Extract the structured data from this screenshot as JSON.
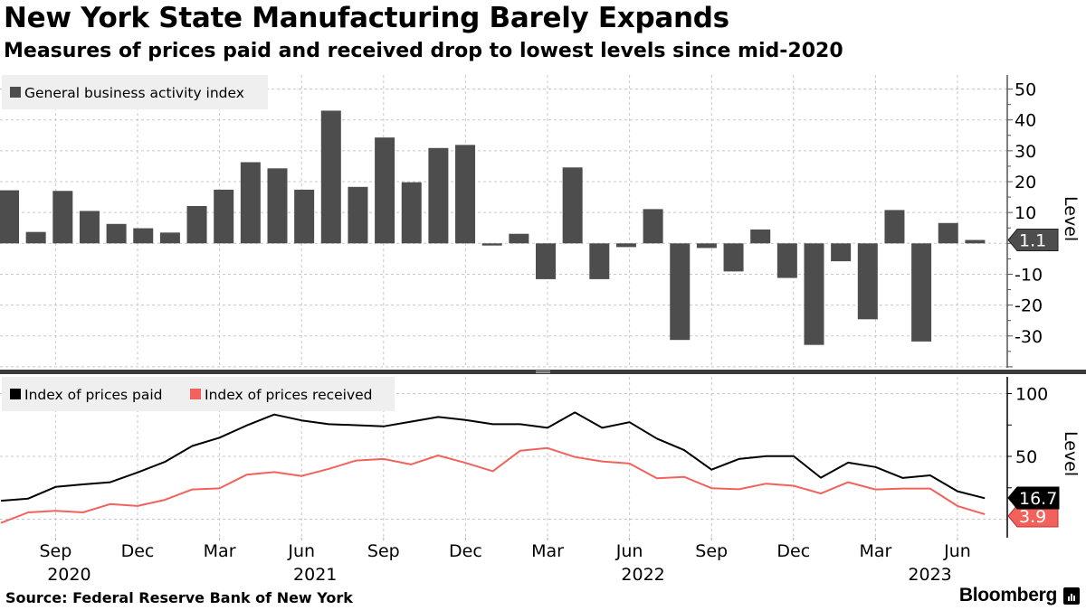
{
  "header": {
    "title": "New York State Manufacturing Barely Expands",
    "subtitle": "Measures of prices paid and received drop to lowest levels since mid-2020"
  },
  "footer": {
    "source": "Source: Federal Reserve Bank of New York",
    "brand": "Bloomberg",
    "brand_icon": "bloomberg-chart-icon"
  },
  "colors": {
    "bar": "#4d4d4d",
    "prices_paid": "#000000",
    "prices_received": "#f2625c",
    "grid": "#c8c8c8",
    "legend_bg": "#efefef"
  },
  "chart_data": [
    {
      "type": "bar",
      "title": "General business activity index",
      "ylabel": "Level",
      "ylim": [
        -40,
        55
      ],
      "yticks": [
        50,
        40,
        30,
        20,
        10,
        -10,
        -20,
        -30
      ],
      "grid": true,
      "legend_position": "top-left",
      "series": [
        {
          "name": "General business activity index",
          "x": [
            "2020-07",
            "2020-08",
            "2020-09",
            "2020-10",
            "2020-11",
            "2020-12",
            "2021-01",
            "2021-02",
            "2021-03",
            "2021-04",
            "2021-05",
            "2021-06",
            "2021-07",
            "2021-08",
            "2021-09",
            "2021-10",
            "2021-11",
            "2021-12",
            "2022-01",
            "2022-02",
            "2022-03",
            "2022-04",
            "2022-05",
            "2022-06",
            "2022-07",
            "2022-08",
            "2022-09",
            "2022-10",
            "2022-11",
            "2022-12",
            "2023-01",
            "2023-02",
            "2023-03",
            "2023-04",
            "2023-05",
            "2023-06",
            "2023-07"
          ],
          "values": [
            17.2,
            3.7,
            17.0,
            10.5,
            6.3,
            4.9,
            3.5,
            12.1,
            17.4,
            26.3,
            24.3,
            17.4,
            43.0,
            18.3,
            34.3,
            19.8,
            30.9,
            31.9,
            -0.7,
            3.1,
            -11.6,
            24.6,
            -11.6,
            -1.2,
            11.1,
            -31.3,
            -1.5,
            -9.1,
            4.5,
            -11.2,
            -32.9,
            -5.8,
            -24.6,
            10.8,
            -31.8,
            6.6,
            1.1
          ]
        }
      ],
      "last_value_label": "1.1"
    },
    {
      "type": "line",
      "ylabel": "Level",
      "ylim": [
        -5,
        110
      ],
      "yticks": [
        100,
        50
      ],
      "minor_yticks": [
        75,
        25
      ],
      "grid": true,
      "legend_position": "top-left",
      "x": [
        "2020-07",
        "2020-08",
        "2020-09",
        "2020-10",
        "2020-11",
        "2020-12",
        "2021-01",
        "2021-02",
        "2021-03",
        "2021-04",
        "2021-05",
        "2021-06",
        "2021-07",
        "2021-08",
        "2021-09",
        "2021-10",
        "2021-11",
        "2021-12",
        "2022-01",
        "2022-02",
        "2022-03",
        "2022-04",
        "2022-05",
        "2022-06",
        "2022-07",
        "2022-08",
        "2022-09",
        "2022-10",
        "2022-11",
        "2022-12",
        "2023-01",
        "2023-02",
        "2023-03",
        "2023-04",
        "2023-05",
        "2023-06",
        "2023-07"
      ],
      "series": [
        {
          "name": "Index of prices paid",
          "values": [
            14.7,
            16.4,
            25.7,
            27.7,
            29.4,
            37.2,
            45.6,
            58.3,
            64.9,
            74.7,
            83.3,
            78.6,
            75.6,
            74.8,
            73.9,
            77.6,
            81.4,
            79.0,
            75.6,
            75.6,
            72.7,
            85.0,
            72.7,
            77.2,
            64.2,
            55.0,
            39.4,
            47.9,
            50.2,
            50.2,
            33.0,
            45.0,
            41.5,
            32.8,
            34.9,
            22.2,
            16.7
          ],
          "last_value_label": "16.7"
        },
        {
          "name": "Index of prices received",
          "values": [
            -3.0,
            5.4,
            6.6,
            5.4,
            12.0,
            10.5,
            15.4,
            23.7,
            24.5,
            35.5,
            37.5,
            34.4,
            40.1,
            46.7,
            47.9,
            43.6,
            50.7,
            44.8,
            38.2,
            54.5,
            56.6,
            49.5,
            46.0,
            44.3,
            32.5,
            33.7,
            24.7,
            23.8,
            28.3,
            26.6,
            20.4,
            29.4,
            23.7,
            24.4,
            24.4,
            10.5,
            3.9
          ],
          "last_value_label": "3.9"
        }
      ]
    }
  ],
  "x_axis": {
    "month_labels": [
      {
        "label": "Sep",
        "date": "2020-09"
      },
      {
        "label": "Dec",
        "date": "2020-12"
      },
      {
        "label": "Mar",
        "date": "2021-03"
      },
      {
        "label": "Jun",
        "date": "2021-06"
      },
      {
        "label": "Sep",
        "date": "2021-09"
      },
      {
        "label": "Dec",
        "date": "2021-12"
      },
      {
        "label": "Mar",
        "date": "2022-03"
      },
      {
        "label": "Jun",
        "date": "2022-06"
      },
      {
        "label": "Sep",
        "date": "2022-09"
      },
      {
        "label": "Dec",
        "date": "2022-12"
      },
      {
        "label": "Mar",
        "date": "2023-03"
      },
      {
        "label": "Jun",
        "date": "2023-06"
      }
    ],
    "year_labels": [
      {
        "label": "2020",
        "date": "2020-09"
      },
      {
        "label": "2021",
        "date": "2021-06"
      },
      {
        "label": "2022",
        "date": "2022-06"
      },
      {
        "label": "2023",
        "date": "2023-04"
      }
    ]
  }
}
